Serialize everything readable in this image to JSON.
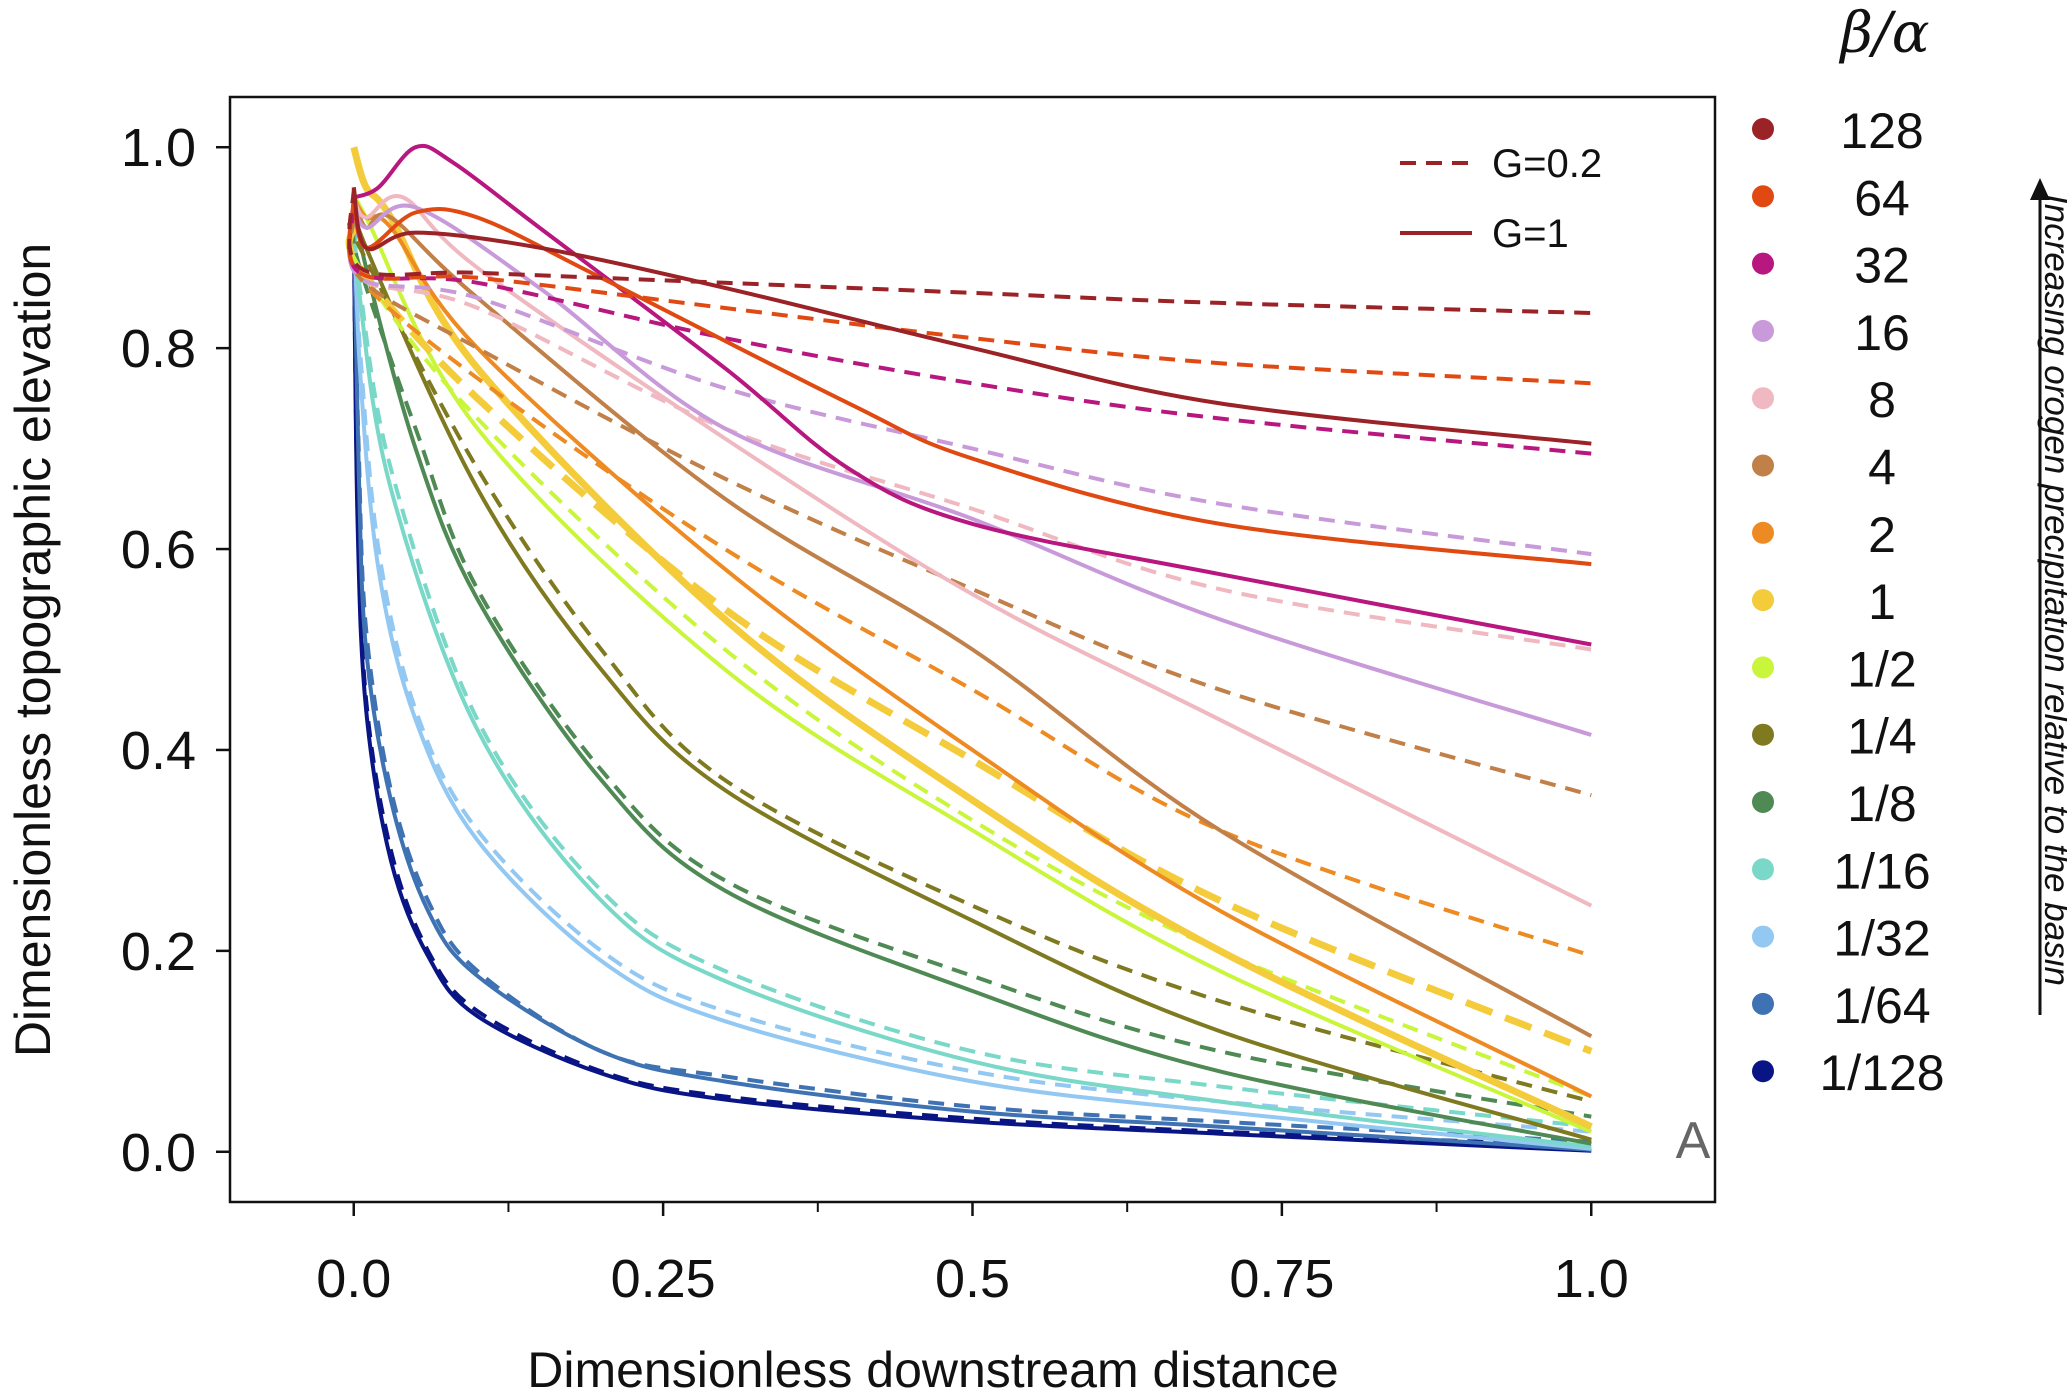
{
  "chart_data": {
    "type": "line",
    "title": "",
    "xlabel": "Dimensionless downstream distance",
    "ylabel": "Dimensionless topographic elevation",
    "xlim": [
      -0.1,
      1.1
    ],
    "ylim": [
      -0.05,
      1.05
    ],
    "xticks": [
      0.0,
      0.25,
      0.5,
      0.75,
      1.0
    ],
    "xtick_labels": [
      "0.0",
      "0.25",
      "0.5",
      "0.75",
      "1.0"
    ],
    "x_minor_ticks": [
      0.125,
      0.375,
      0.625,
      0.875
    ],
    "yticks": [
      0.0,
      0.2,
      0.4,
      0.6,
      0.8,
      1.0
    ],
    "ytick_labels": [
      "0.0",
      "0.2",
      "0.4",
      "0.6",
      "0.8",
      "1.0"
    ],
    "grid": false,
    "panel_label": "A",
    "line_style_legend": {
      "position": "top-right",
      "entries": [
        {
          "label": "G=0.2",
          "style": "dashed",
          "color": "#9b2226"
        },
        {
          "label": "G=1",
          "style": "solid",
          "color": "#9b2226"
        }
      ]
    },
    "color_legend": {
      "title": "β/α",
      "position": "right"
    },
    "side_annotation": "Increasing orogen precipitation relative to the basin",
    "series": [
      {
        "name": "128",
        "color": "#9b2226",
        "G02": [
          [
            0,
            0.96
          ],
          [
            0.005,
            0.88
          ],
          [
            0.1,
            0.875
          ],
          [
            0.3,
            0.865
          ],
          [
            0.5,
            0.855
          ],
          [
            0.7,
            0.845
          ],
          [
            1.0,
            0.835
          ]
        ],
        "G1": [
          [
            0,
            0.96
          ],
          [
            0.01,
            0.9
          ],
          [
            0.05,
            0.915
          ],
          [
            0.15,
            0.9
          ],
          [
            0.3,
            0.86
          ],
          [
            0.5,
            0.8
          ],
          [
            0.7,
            0.745
          ],
          [
            1.0,
            0.705
          ]
        ]
      },
      {
        "name": "64",
        "color": "#e04a12",
        "G02": [
          [
            0,
            0.95
          ],
          [
            0.005,
            0.875
          ],
          [
            0.1,
            0.87
          ],
          [
            0.3,
            0.84
          ],
          [
            0.5,
            0.81
          ],
          [
            0.7,
            0.785
          ],
          [
            1.0,
            0.765
          ]
        ],
        "G1": [
          [
            0,
            0.95
          ],
          [
            0.01,
            0.9
          ],
          [
            0.05,
            0.935
          ],
          [
            0.1,
            0.93
          ],
          [
            0.2,
            0.87
          ],
          [
            0.4,
            0.745
          ],
          [
            0.5,
            0.69
          ],
          [
            0.7,
            0.625
          ],
          [
            1.0,
            0.585
          ]
        ]
      },
      {
        "name": "32",
        "color": "#b8177f",
        "G02": [
          [
            0,
            0.94
          ],
          [
            0.005,
            0.875
          ],
          [
            0.1,
            0.865
          ],
          [
            0.3,
            0.81
          ],
          [
            0.5,
            0.765
          ],
          [
            0.7,
            0.73
          ],
          [
            1.0,
            0.695
          ]
        ],
        "G1": [
          [
            0,
            0.95
          ],
          [
            0.02,
            0.96
          ],
          [
            0.05,
            1.0
          ],
          [
            0.08,
            0.985
          ],
          [
            0.15,
            0.92
          ],
          [
            0.3,
            0.78
          ],
          [
            0.4,
            0.68
          ],
          [
            0.5,
            0.625
          ],
          [
            0.7,
            0.575
          ],
          [
            1.0,
            0.505
          ]
        ]
      },
      {
        "name": "16",
        "color": "#c89ad9",
        "G02": [
          [
            0,
            0.94
          ],
          [
            0.005,
            0.87
          ],
          [
            0.1,
            0.85
          ],
          [
            0.3,
            0.76
          ],
          [
            0.5,
            0.7
          ],
          [
            0.7,
            0.645
          ],
          [
            1.0,
            0.595
          ]
        ],
        "G1": [
          [
            0,
            0.95
          ],
          [
            0.01,
            0.92
          ],
          [
            0.05,
            0.94
          ],
          [
            0.15,
            0.86
          ],
          [
            0.3,
            0.72
          ],
          [
            0.5,
            0.63
          ],
          [
            0.7,
            0.53
          ],
          [
            1.0,
            0.415
          ]
        ]
      },
      {
        "name": "8",
        "color": "#f0b8c0",
        "G02": [
          [
            0,
            0.94
          ],
          [
            0.005,
            0.87
          ],
          [
            0.1,
            0.84
          ],
          [
            0.3,
            0.72
          ],
          [
            0.5,
            0.64
          ],
          [
            0.7,
            0.56
          ],
          [
            1.0,
            0.5
          ]
        ],
        "G1": [
          [
            0,
            0.95
          ],
          [
            0.01,
            0.93
          ],
          [
            0.04,
            0.95
          ],
          [
            0.1,
            0.88
          ],
          [
            0.3,
            0.71
          ],
          [
            0.5,
            0.555
          ],
          [
            0.7,
            0.43
          ],
          [
            1.0,
            0.245
          ]
        ]
      },
      {
        "name": "4",
        "color": "#c08048",
        "G02": [
          [
            0,
            0.93
          ],
          [
            0.005,
            0.87
          ],
          [
            0.1,
            0.8
          ],
          [
            0.3,
            0.67
          ],
          [
            0.5,
            0.56
          ],
          [
            0.7,
            0.46
          ],
          [
            1.0,
            0.355
          ]
        ],
        "G1": [
          [
            0,
            0.95
          ],
          [
            0.01,
            0.92
          ],
          [
            0.03,
            0.93
          ],
          [
            0.1,
            0.85
          ],
          [
            0.3,
            0.65
          ],
          [
            0.5,
            0.5
          ],
          [
            0.7,
            0.32
          ],
          [
            1.0,
            0.115
          ]
        ]
      },
      {
        "name": "2",
        "color": "#ee8a22",
        "G02": [
          [
            0,
            0.93
          ],
          [
            0.005,
            0.87
          ],
          [
            0.1,
            0.77
          ],
          [
            0.3,
            0.6
          ],
          [
            0.5,
            0.46
          ],
          [
            0.7,
            0.32
          ],
          [
            1.0,
            0.195
          ]
        ],
        "G1": [
          [
            0,
            0.95
          ],
          [
            0.01,
            0.93
          ],
          [
            0.03,
            0.92
          ],
          [
            0.1,
            0.8
          ],
          [
            0.3,
            0.58
          ],
          [
            0.5,
            0.4
          ],
          [
            0.7,
            0.24
          ],
          [
            1.0,
            0.055
          ]
        ]
      },
      {
        "name": "1",
        "color": "#f4cb3a",
        "G02": [
          [
            0,
            0.92
          ],
          [
            0.005,
            0.88
          ],
          [
            0.1,
            0.75
          ],
          [
            0.3,
            0.54
          ],
          [
            0.5,
            0.39
          ],
          [
            0.7,
            0.25
          ],
          [
            1.0,
            0.1
          ]
        ],
        "G1": [
          [
            0,
            1.0
          ],
          [
            0.01,
            0.96
          ],
          [
            0.03,
            0.93
          ],
          [
            0.1,
            0.78
          ],
          [
            0.3,
            0.53
          ],
          [
            0.5,
            0.35
          ],
          [
            0.7,
            0.2
          ],
          [
            1.0,
            0.025
          ]
        ]
      },
      {
        "name": "1/2",
        "color": "#c9f53a",
        "G02": [
          [
            0,
            0.92
          ],
          [
            0.005,
            0.88
          ],
          [
            0.1,
            0.73
          ],
          [
            0.3,
            0.5
          ],
          [
            0.5,
            0.33
          ],
          [
            0.7,
            0.2
          ],
          [
            1.0,
            0.055
          ]
        ],
        "G1": [
          [
            0,
            0.95
          ],
          [
            0.01,
            0.93
          ],
          [
            0.1,
            0.72
          ],
          [
            0.3,
            0.48
          ],
          [
            0.5,
            0.32
          ],
          [
            0.7,
            0.18
          ],
          [
            1.0,
            0.02
          ]
        ]
      },
      {
        "name": "1/4",
        "color": "#7f7a20",
        "G02": [
          [
            0,
            0.92
          ],
          [
            0.005,
            0.9
          ],
          [
            0.1,
            0.68
          ],
          [
            0.2,
            0.5
          ],
          [
            0.3,
            0.37
          ],
          [
            0.5,
            0.245
          ],
          [
            0.7,
            0.15
          ],
          [
            1.0,
            0.05
          ]
        ],
        "G1": [
          [
            0,
            0.95
          ],
          [
            0.01,
            0.9
          ],
          [
            0.1,
            0.66
          ],
          [
            0.2,
            0.48
          ],
          [
            0.3,
            0.36
          ],
          [
            0.5,
            0.23
          ],
          [
            0.7,
            0.12
          ],
          [
            1.0,
            0.012
          ]
        ]
      },
      {
        "name": "1/8",
        "color": "#4f8a55",
        "G02": [
          [
            0,
            0.92
          ],
          [
            0.005,
            0.88
          ],
          [
            0.05,
            0.72
          ],
          [
            0.1,
            0.56
          ],
          [
            0.2,
            0.38
          ],
          [
            0.3,
            0.27
          ],
          [
            0.5,
            0.175
          ],
          [
            0.7,
            0.1
          ],
          [
            1.0,
            0.035
          ]
        ],
        "G1": [
          [
            0,
            0.95
          ],
          [
            0.01,
            0.88
          ],
          [
            0.05,
            0.7
          ],
          [
            0.1,
            0.55
          ],
          [
            0.2,
            0.37
          ],
          [
            0.3,
            0.26
          ],
          [
            0.5,
            0.16
          ],
          [
            0.7,
            0.08
          ],
          [
            1.0,
            0.008
          ]
        ]
      },
      {
        "name": "1/16",
        "color": "#7ad8c8",
        "G02": [
          [
            0,
            0.92
          ],
          [
            0.005,
            0.86
          ],
          [
            0.03,
            0.68
          ],
          [
            0.1,
            0.43
          ],
          [
            0.2,
            0.26
          ],
          [
            0.3,
            0.18
          ],
          [
            0.5,
            0.1
          ],
          [
            0.7,
            0.065
          ],
          [
            1.0,
            0.025
          ]
        ],
        "G1": [
          [
            0,
            0.95
          ],
          [
            0.005,
            0.85
          ],
          [
            0.03,
            0.66
          ],
          [
            0.1,
            0.42
          ],
          [
            0.2,
            0.25
          ],
          [
            0.3,
            0.17
          ],
          [
            0.5,
            0.09
          ],
          [
            0.7,
            0.05
          ],
          [
            1.0,
            0.005
          ]
        ]
      },
      {
        "name": "1/32",
        "color": "#92c8f2",
        "G02": [
          [
            0,
            0.92
          ],
          [
            0.005,
            0.8
          ],
          [
            0.02,
            0.6
          ],
          [
            0.05,
            0.44
          ],
          [
            0.1,
            0.32
          ],
          [
            0.2,
            0.2
          ],
          [
            0.3,
            0.14
          ],
          [
            0.5,
            0.08
          ],
          [
            0.7,
            0.05
          ],
          [
            1.0,
            0.02
          ]
        ],
        "G1": [
          [
            0,
            0.95
          ],
          [
            0.005,
            0.78
          ],
          [
            0.02,
            0.58
          ],
          [
            0.05,
            0.43
          ],
          [
            0.1,
            0.31
          ],
          [
            0.2,
            0.19
          ],
          [
            0.3,
            0.13
          ],
          [
            0.5,
            0.07
          ],
          [
            0.7,
            0.04
          ],
          [
            1.0,
            0.003
          ]
        ]
      },
      {
        "name": "1/64",
        "color": "#3f72b2",
        "G02": [
          [
            0,
            0.92
          ],
          [
            0.004,
            0.7
          ],
          [
            0.01,
            0.52
          ],
          [
            0.03,
            0.36
          ],
          [
            0.06,
            0.25
          ],
          [
            0.1,
            0.18
          ],
          [
            0.2,
            0.1
          ],
          [
            0.3,
            0.075
          ],
          [
            0.5,
            0.045
          ],
          [
            0.7,
            0.03
          ],
          [
            1.0,
            0.01
          ]
        ],
        "G1": [
          [
            0,
            0.94
          ],
          [
            0.004,
            0.68
          ],
          [
            0.01,
            0.5
          ],
          [
            0.03,
            0.35
          ],
          [
            0.06,
            0.24
          ],
          [
            0.1,
            0.175
          ],
          [
            0.2,
            0.1
          ],
          [
            0.3,
            0.07
          ],
          [
            0.5,
            0.04
          ],
          [
            0.7,
            0.025
          ],
          [
            1.0,
            0.002
          ]
        ]
      },
      {
        "name": "1/128",
        "color": "#0a1585",
        "G02": [
          [
            0,
            0.92
          ],
          [
            0.003,
            0.65
          ],
          [
            0.01,
            0.45
          ],
          [
            0.03,
            0.3
          ],
          [
            0.06,
            0.2
          ],
          [
            0.1,
            0.14
          ],
          [
            0.2,
            0.08
          ],
          [
            0.3,
            0.055
          ],
          [
            0.5,
            0.033
          ],
          [
            0.7,
            0.02
          ],
          [
            1.0,
            0.006
          ]
        ],
        "G1": [
          [
            0,
            0.93
          ],
          [
            0.003,
            0.63
          ],
          [
            0.01,
            0.44
          ],
          [
            0.03,
            0.29
          ],
          [
            0.06,
            0.195
          ],
          [
            0.1,
            0.135
          ],
          [
            0.2,
            0.078
          ],
          [
            0.3,
            0.052
          ],
          [
            0.5,
            0.03
          ],
          [
            0.7,
            0.018
          ],
          [
            1.0,
            0.001
          ]
        ]
      }
    ]
  }
}
